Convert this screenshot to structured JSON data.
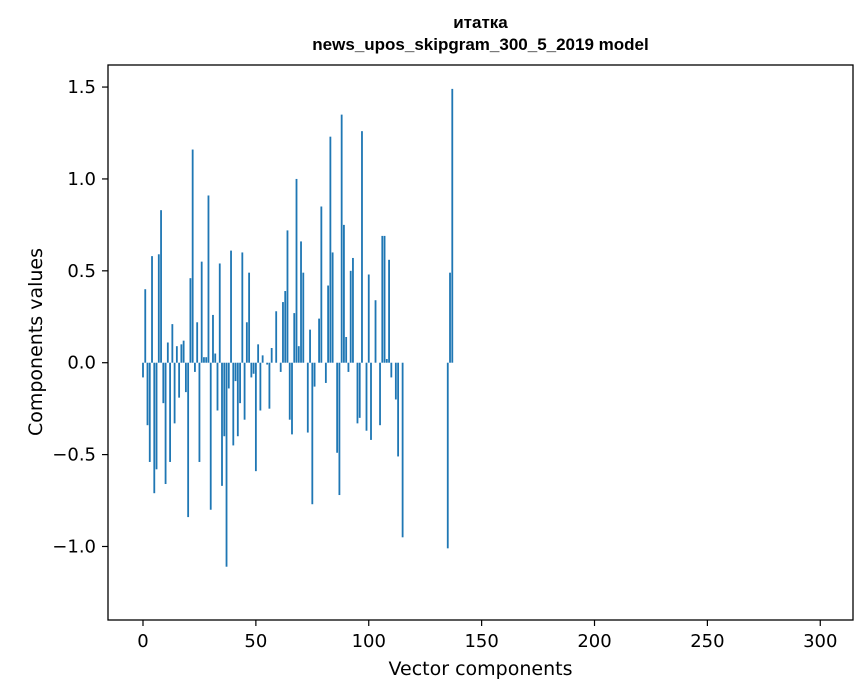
{
  "chart_data": {
    "type": "bar",
    "title": "итатка",
    "subtitle": "news_upos_skipgram_300_5_2019 model",
    "xlabel": "Vector components",
    "ylabel": "Components values",
    "xlim": [
      -15.5,
      314.5
    ],
    "ylim": [
      -1.4,
      1.62
    ],
    "x_ticks": [
      0,
      50,
      100,
      150,
      200,
      250,
      300
    ],
    "x_tick_labels": [
      "0",
      "50",
      "100",
      "150",
      "200",
      "250",
      "300"
    ],
    "y_ticks": [
      -1.0,
      -0.5,
      0.0,
      0.5,
      1.0,
      1.5
    ],
    "y_tick_labels": [
      "−1.0",
      "−0.5",
      "0.0",
      "0.5",
      "1.0",
      "1.5"
    ],
    "grid": false,
    "bar_color": "#1f77b4",
    "x_start": 0,
    "values": [
      -0.08,
      0.4,
      -0.34,
      -0.54,
      0.58,
      -0.71,
      -0.58,
      0.59,
      0.83,
      -0.22,
      -0.66,
      0.11,
      -0.54,
      0.21,
      -0.33,
      0.09,
      -0.19,
      0.1,
      0.12,
      -0.16,
      -0.84,
      0.46,
      1.16,
      -0.05,
      0.22,
      -0.54,
      0.55,
      0.03,
      0.03,
      0.91,
      -0.8,
      0.26,
      0.05,
      -0.26,
      0.54,
      -0.67,
      -0.4,
      -1.11,
      -0.14,
      0.61,
      -0.45,
      -0.1,
      -0.4,
      -0.22,
      0.6,
      -0.31,
      0.22,
      0.49,
      -0.08,
      -0.06,
      -0.59,
      0.1,
      -0.26,
      0.04,
      0.0,
      -0.01,
      -0.25,
      0.08,
      0.0,
      0.28,
      0.0,
      -0.05,
      0.33,
      0.39,
      0.72,
      -0.31,
      -0.39,
      0.27,
      1.0,
      0.09,
      0.66,
      0.49,
      0.0,
      -0.38,
      0.18,
      -0.77,
      -0.13,
      0.0,
      0.24,
      0.85,
      0.0,
      -0.11,
      0.42,
      1.23,
      0.6,
      0.0,
      -0.49,
      -0.72,
      1.35,
      0.75,
      0.14,
      -0.05,
      0.5,
      0.57,
      0.0,
      -0.33,
      -0.3,
      1.26,
      0.0,
      -0.37,
      0.48,
      -0.42,
      0.0,
      0.34,
      0.0,
      -0.34,
      0.69,
      0.69,
      0.02,
      0.56,
      -0.08,
      0.0,
      -0.2,
      -0.51,
      0.0,
      -0.95,
      0.0,
      0.0,
      0.0,
      0.0,
      0.0,
      0.0,
      0.0,
      0.0,
      0.0,
      0.0,
      0.0,
      0.0,
      0.0,
      0.0,
      0.0,
      0.0,
      0.0,
      0.0,
      0.0,
      -1.01,
      0.49,
      1.49,
      0.0,
      0.0,
      0.0,
      0.0,
      0.0,
      0.0,
      0.0,
      0.0,
      0.0,
      0.0,
      0.0,
      0.0,
      0.0,
      0.0,
      0.0,
      0.0,
      0.0,
      0.0,
      0.0,
      0.0,
      0.0,
      0.0,
      0.0,
      0.0,
      0.0,
      0.0,
      0.0,
      0.0,
      0.0,
      0.0,
      0.0,
      0.0,
      0.0,
      0.0,
      0.0,
      0.0,
      0.0,
      0.0,
      0.0,
      0.0,
      0.0,
      0.0,
      0.0,
      0.0,
      0.0,
      0.0,
      0.0,
      0.0,
      0.0,
      0.0,
      0.0,
      0.0,
      0.0,
      0.0,
      0.0,
      0.0,
      0.0,
      0.0,
      0.0,
      0.0,
      0.0,
      0.0,
      0.0,
      0.0,
      0.0,
      0.0,
      0.0,
      0.0,
      0.0,
      0.0,
      0.0,
      0.0,
      0.0,
      0.0,
      0.0,
      0.0,
      0.0,
      0.0,
      0.0,
      0.0,
      0.0,
      0.0,
      0.0,
      0.0,
      0.0,
      0.0,
      0.0,
      0.0,
      0.0,
      0.0,
      0.0,
      0.0,
      0.0,
      0.0,
      0.0,
      0.0,
      0.0,
      0.0,
      0.0,
      0.0,
      0.0,
      0.0,
      0.0,
      0.0,
      0.0,
      0.0,
      0.0,
      0.0,
      0.0,
      0.0,
      0.0,
      0.0,
      0.0,
      0.0,
      0.0,
      0.0,
      0.0,
      0.0,
      0.0,
      0.0,
      0.0,
      0.0,
      0.0,
      0.0,
      0.0,
      0.0,
      0.0,
      0.0,
      0.0,
      0.0,
      0.0,
      0.0,
      0.0,
      0.0,
      0.0,
      0.0,
      0.0,
      0.0,
      0.0,
      0.0,
      0.0,
      0.0,
      0.0,
      0.0,
      0.0,
      0.0,
      0.0,
      0.0,
      0.0,
      0.0,
      0.0,
      0.0,
      0.0,
      0.0,
      0.0,
      0.0,
      0.0,
      0.0
    ]
  }
}
